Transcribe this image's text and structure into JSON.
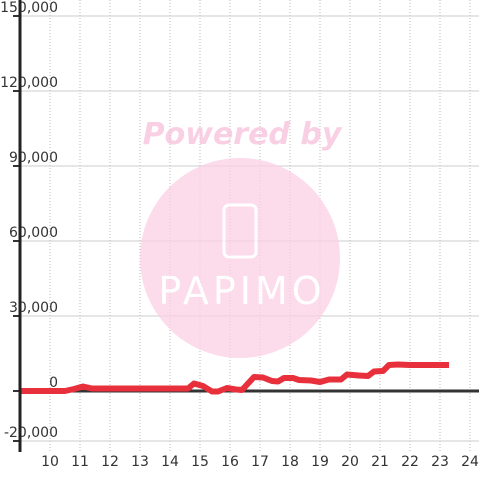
{
  "chart_data": {
    "type": "line",
    "watermark": {
      "top": "Powered by",
      "brand": "PAPIMO"
    },
    "xlim": [
      9,
      24.3
    ],
    "xticks": [
      10,
      11,
      12,
      13,
      14,
      15,
      16,
      17,
      18,
      19,
      20,
      21,
      22,
      23,
      24
    ],
    "ylim": [
      -20000,
      150000
    ],
    "yticks": [
      {
        "value": -20000,
        "label": "-20,000"
      },
      0,
      {
        "value": 30000,
        "label": "30,000"
      },
      {
        "value": 60000,
        "label": "60,000"
      },
      {
        "value": 90000,
        "label": "90,000"
      },
      {
        "value": 120000,
        "label": "120,000"
      },
      {
        "value": 150000,
        "label": "150,000"
      }
    ],
    "grid": true,
    "series": [
      {
        "color": "#e8303d",
        "x": [
          9,
          10,
          10.5,
          10.8,
          11.1,
          11.4,
          12,
          13,
          14,
          14.6,
          14.8,
          15.1,
          15.4,
          15.6,
          15.9,
          16.2,
          16.4,
          16.8,
          17.1,
          17.4,
          17.6,
          17.8,
          18.1,
          18.3,
          18.7,
          19,
          19.3,
          19.7,
          19.9,
          20.3,
          20.6,
          20.8,
          21.1,
          21.3,
          21.6,
          22,
          22.5,
          23.3
        ],
        "values": [
          0,
          0,
          0,
          800,
          1800,
          1000,
          1000,
          1000,
          1000,
          1000,
          3000,
          2000,
          -200,
          -200,
          1200,
          600,
          400,
          5600,
          5400,
          4000,
          3800,
          5200,
          5200,
          4400,
          4200,
          3600,
          4600,
          4600,
          6600,
          6200,
          6000,
          7800,
          8000,
          10400,
          10600,
          10400,
          10400,
          10400
        ]
      }
    ]
  }
}
